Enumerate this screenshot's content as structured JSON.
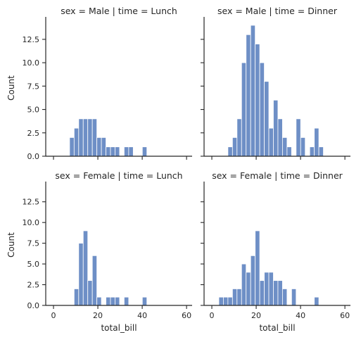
{
  "colors": {
    "bar_fill": "#6e8fc6",
    "bar_edge": "#ffffff",
    "axis": "#262626",
    "background": "#ffffff"
  },
  "chart_data": {
    "type": "bar",
    "grid": false,
    "xlim": [
      -3.5,
      62.5
    ],
    "ylim": [
      0,
      14.6
    ],
    "bin_width": 2.05,
    "x_ticks": [
      0,
      20,
      40,
      60
    ],
    "y_ticks": [
      0,
      2.5,
      5,
      7.5,
      10,
      12.5
    ],
    "y_tick_labels": [
      "0.0",
      "2.5",
      "5.0",
      "7.5",
      "10.0",
      "12.5"
    ],
    "xlabel": "total_bill",
    "ylabel": "Count",
    "panels": [
      {
        "id": "male-lunch",
        "title": "sex = Male | time = Lunch",
        "bins": [
          {
            "x": 7.25,
            "count": 2
          },
          {
            "x": 9.3,
            "count": 3
          },
          {
            "x": 11.35,
            "count": 4
          },
          {
            "x": 13.4,
            "count": 4
          },
          {
            "x": 15.45,
            "count": 4
          },
          {
            "x": 17.5,
            "count": 4
          },
          {
            "x": 19.55,
            "count": 2
          },
          {
            "x": 21.6,
            "count": 2
          },
          {
            "x": 23.65,
            "count": 1
          },
          {
            "x": 25.7,
            "count": 1
          },
          {
            "x": 27.75,
            "count": 1
          },
          {
            "x": 31.85,
            "count": 1
          },
          {
            "x": 33.9,
            "count": 1
          },
          {
            "x": 40.05,
            "count": 1
          }
        ]
      },
      {
        "id": "male-dinner",
        "title": "sex = Male | time = Dinner",
        "bins": [
          {
            "x": 7.25,
            "count": 1
          },
          {
            "x": 9.3,
            "count": 2
          },
          {
            "x": 11.35,
            "count": 4
          },
          {
            "x": 13.4,
            "count": 10
          },
          {
            "x": 15.45,
            "count": 13
          },
          {
            "x": 17.5,
            "count": 14
          },
          {
            "x": 19.55,
            "count": 12
          },
          {
            "x": 21.6,
            "count": 10
          },
          {
            "x": 23.65,
            "count": 8
          },
          {
            "x": 25.7,
            "count": 3
          },
          {
            "x": 27.75,
            "count": 6
          },
          {
            "x": 29.8,
            "count": 4
          },
          {
            "x": 31.85,
            "count": 2
          },
          {
            "x": 33.9,
            "count": 1
          },
          {
            "x": 38.0,
            "count": 4
          },
          {
            "x": 40.05,
            "count": 2
          },
          {
            "x": 44.15,
            "count": 1
          },
          {
            "x": 46.2,
            "count": 3
          },
          {
            "x": 48.25,
            "count": 1
          }
        ]
      },
      {
        "id": "female-lunch",
        "title": "sex = Female | time = Lunch",
        "bins": [
          {
            "x": 9.3,
            "count": 2
          },
          {
            "x": 11.35,
            "count": 7.5
          },
          {
            "x": 13.4,
            "count": 9
          },
          {
            "x": 15.45,
            "count": 3
          },
          {
            "x": 17.5,
            "count": 6
          },
          {
            "x": 19.55,
            "count": 1
          },
          {
            "x": 23.65,
            "count": 1
          },
          {
            "x": 25.7,
            "count": 1
          },
          {
            "x": 27.75,
            "count": 1
          },
          {
            "x": 31.85,
            "count": 1
          },
          {
            "x": 40.05,
            "count": 1
          }
        ]
      },
      {
        "id": "female-dinner",
        "title": "sex = Female | time = Dinner",
        "bins": [
          {
            "x": 3.15,
            "count": 1
          },
          {
            "x": 5.2,
            "count": 1
          },
          {
            "x": 7.25,
            "count": 1
          },
          {
            "x": 9.3,
            "count": 2
          },
          {
            "x": 11.35,
            "count": 2
          },
          {
            "x": 13.4,
            "count": 5
          },
          {
            "x": 15.45,
            "count": 4
          },
          {
            "x": 17.5,
            "count": 6
          },
          {
            "x": 19.55,
            "count": 9
          },
          {
            "x": 21.6,
            "count": 3
          },
          {
            "x": 23.65,
            "count": 4
          },
          {
            "x": 25.7,
            "count": 4
          },
          {
            "x": 27.75,
            "count": 3
          },
          {
            "x": 29.8,
            "count": 3
          },
          {
            "x": 31.85,
            "count": 2
          },
          {
            "x": 35.95,
            "count": 2
          },
          {
            "x": 46.2,
            "count": 1
          }
        ]
      }
    ]
  }
}
